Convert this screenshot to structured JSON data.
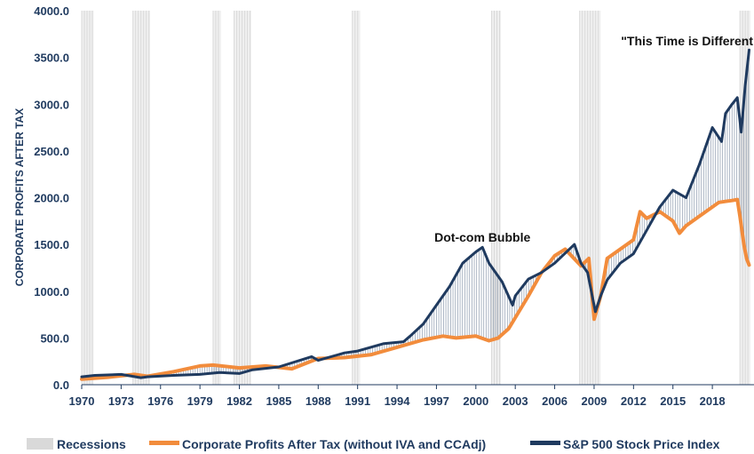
{
  "chart_data": {
    "type": "line",
    "ylabel": "CORPORATE PROFITS AFTER TAX",
    "xlabel": "",
    "ylim": [
      0,
      4000
    ],
    "xlim": [
      1970,
      2020.9
    ],
    "yticks": [
      "0.0",
      "500.0",
      "1000.0",
      "1500.0",
      "2000.0",
      "2500.0",
      "3000.0",
      "3500.0",
      "4000.0"
    ],
    "xticks": [
      "1970",
      "1973",
      "1976",
      "1979",
      "1982",
      "1985",
      "1988",
      "1991",
      "1994",
      "1997",
      "2000",
      "2003",
      "2006",
      "2009",
      "2012",
      "2015",
      "2018"
    ],
    "grid": false,
    "legend_position": "bottom",
    "legend": [
      "Recessions",
      "Corporate Profits After Tax (without IVA and CCAdj)",
      "S&P 500 Stock Price Index"
    ],
    "colors": {
      "recession": "#d9d9d9",
      "profits": "#f28c3c",
      "sp500": "#1f3a5f",
      "fill": "#1f3a5f"
    },
    "recessions": [
      [
        1970.0,
        1970.9
      ],
      [
        1973.9,
        1975.2
      ],
      [
        1980.0,
        1980.6
      ],
      [
        1981.6,
        1982.9
      ],
      [
        1990.6,
        1991.2
      ],
      [
        2001.2,
        2001.9
      ],
      [
        2007.9,
        2009.5
      ],
      [
        2020.1,
        2020.9
      ]
    ],
    "series": [
      {
        "name": "Corporate Profits After Tax (without IVA and CCAdj)",
        "x": [
          1970,
          1972,
          1974,
          1975,
          1977,
          1979,
          1980,
          1982,
          1984,
          1986,
          1988,
          1990,
          1992,
          1994,
          1996,
          1997.5,
          1998.5,
          2000,
          2001,
          2001.7,
          2002.5,
          2004,
          2005,
          2006,
          2006.8,
          2008,
          2008.6,
          2009,
          2009.5,
          2010,
          2011,
          2012,
          2012.5,
          2013,
          2014,
          2015,
          2015.5,
          2016,
          2017,
          2018,
          2018.5,
          2019,
          2019.5,
          2019.9,
          2020.1,
          2020.4,
          2020.6,
          2020.8
        ],
        "y": [
          60,
          80,
          110,
          90,
          140,
          200,
          210,
          180,
          200,
          170,
          280,
          290,
          320,
          400,
          480,
          520,
          500,
          520,
          470,
          500,
          600,
          950,
          1200,
          1380,
          1450,
          1270,
          1350,
          700,
          950,
          1350,
          1450,
          1550,
          1850,
          1780,
          1850,
          1750,
          1620,
          1700,
          1800,
          1900,
          1950,
          1960,
          1970,
          1980,
          1800,
          1500,
          1350,
          1280
        ]
      },
      {
        "name": "S&P 500 Stock Price Index",
        "x": [
          1970,
          1971,
          1973,
          1974.5,
          1975,
          1977,
          1979,
          1980.5,
          1982,
          1983,
          1985,
          1987.5,
          1988,
          1990,
          1991,
          1993,
          1994.5,
          1995,
          1996,
          1997,
          1998,
          1999,
          2000,
          2000.5,
          2001,
          2001.5,
          2002,
          2002.8,
          2003,
          2004,
          2005,
          2006,
          2007.5,
          2008,
          2008.5,
          2009.1,
          2009.5,
          2010,
          2011,
          2012,
          2013,
          2014,
          2015,
          2016,
          2017,
          2018,
          2018.7,
          2019,
          2019.5,
          2019.9,
          2020.2,
          2020.5,
          2020.8
        ],
        "y": [
          85,
          100,
          110,
          75,
          85,
          100,
          110,
          130,
          120,
          160,
          190,
          300,
          260,
          340,
          360,
          440,
          460,
          520,
          650,
          850,
          1050,
          1300,
          1420,
          1470,
          1300,
          1200,
          1100,
          850,
          950,
          1130,
          1200,
          1300,
          1500,
          1300,
          1200,
          780,
          950,
          1120,
          1300,
          1400,
          1650,
          1900,
          2080,
          2000,
          2350,
          2750,
          2600,
          2900,
          3000,
          3070,
          2700,
          3200,
          3580
        ]
      }
    ],
    "annotations": [
      {
        "text": "Dot-com Bubble",
        "x": 2000.5,
        "y": 1530
      },
      {
        "text": "\"This Time is Different\"",
        "x": 2016.3,
        "y": 3630
      }
    ]
  }
}
